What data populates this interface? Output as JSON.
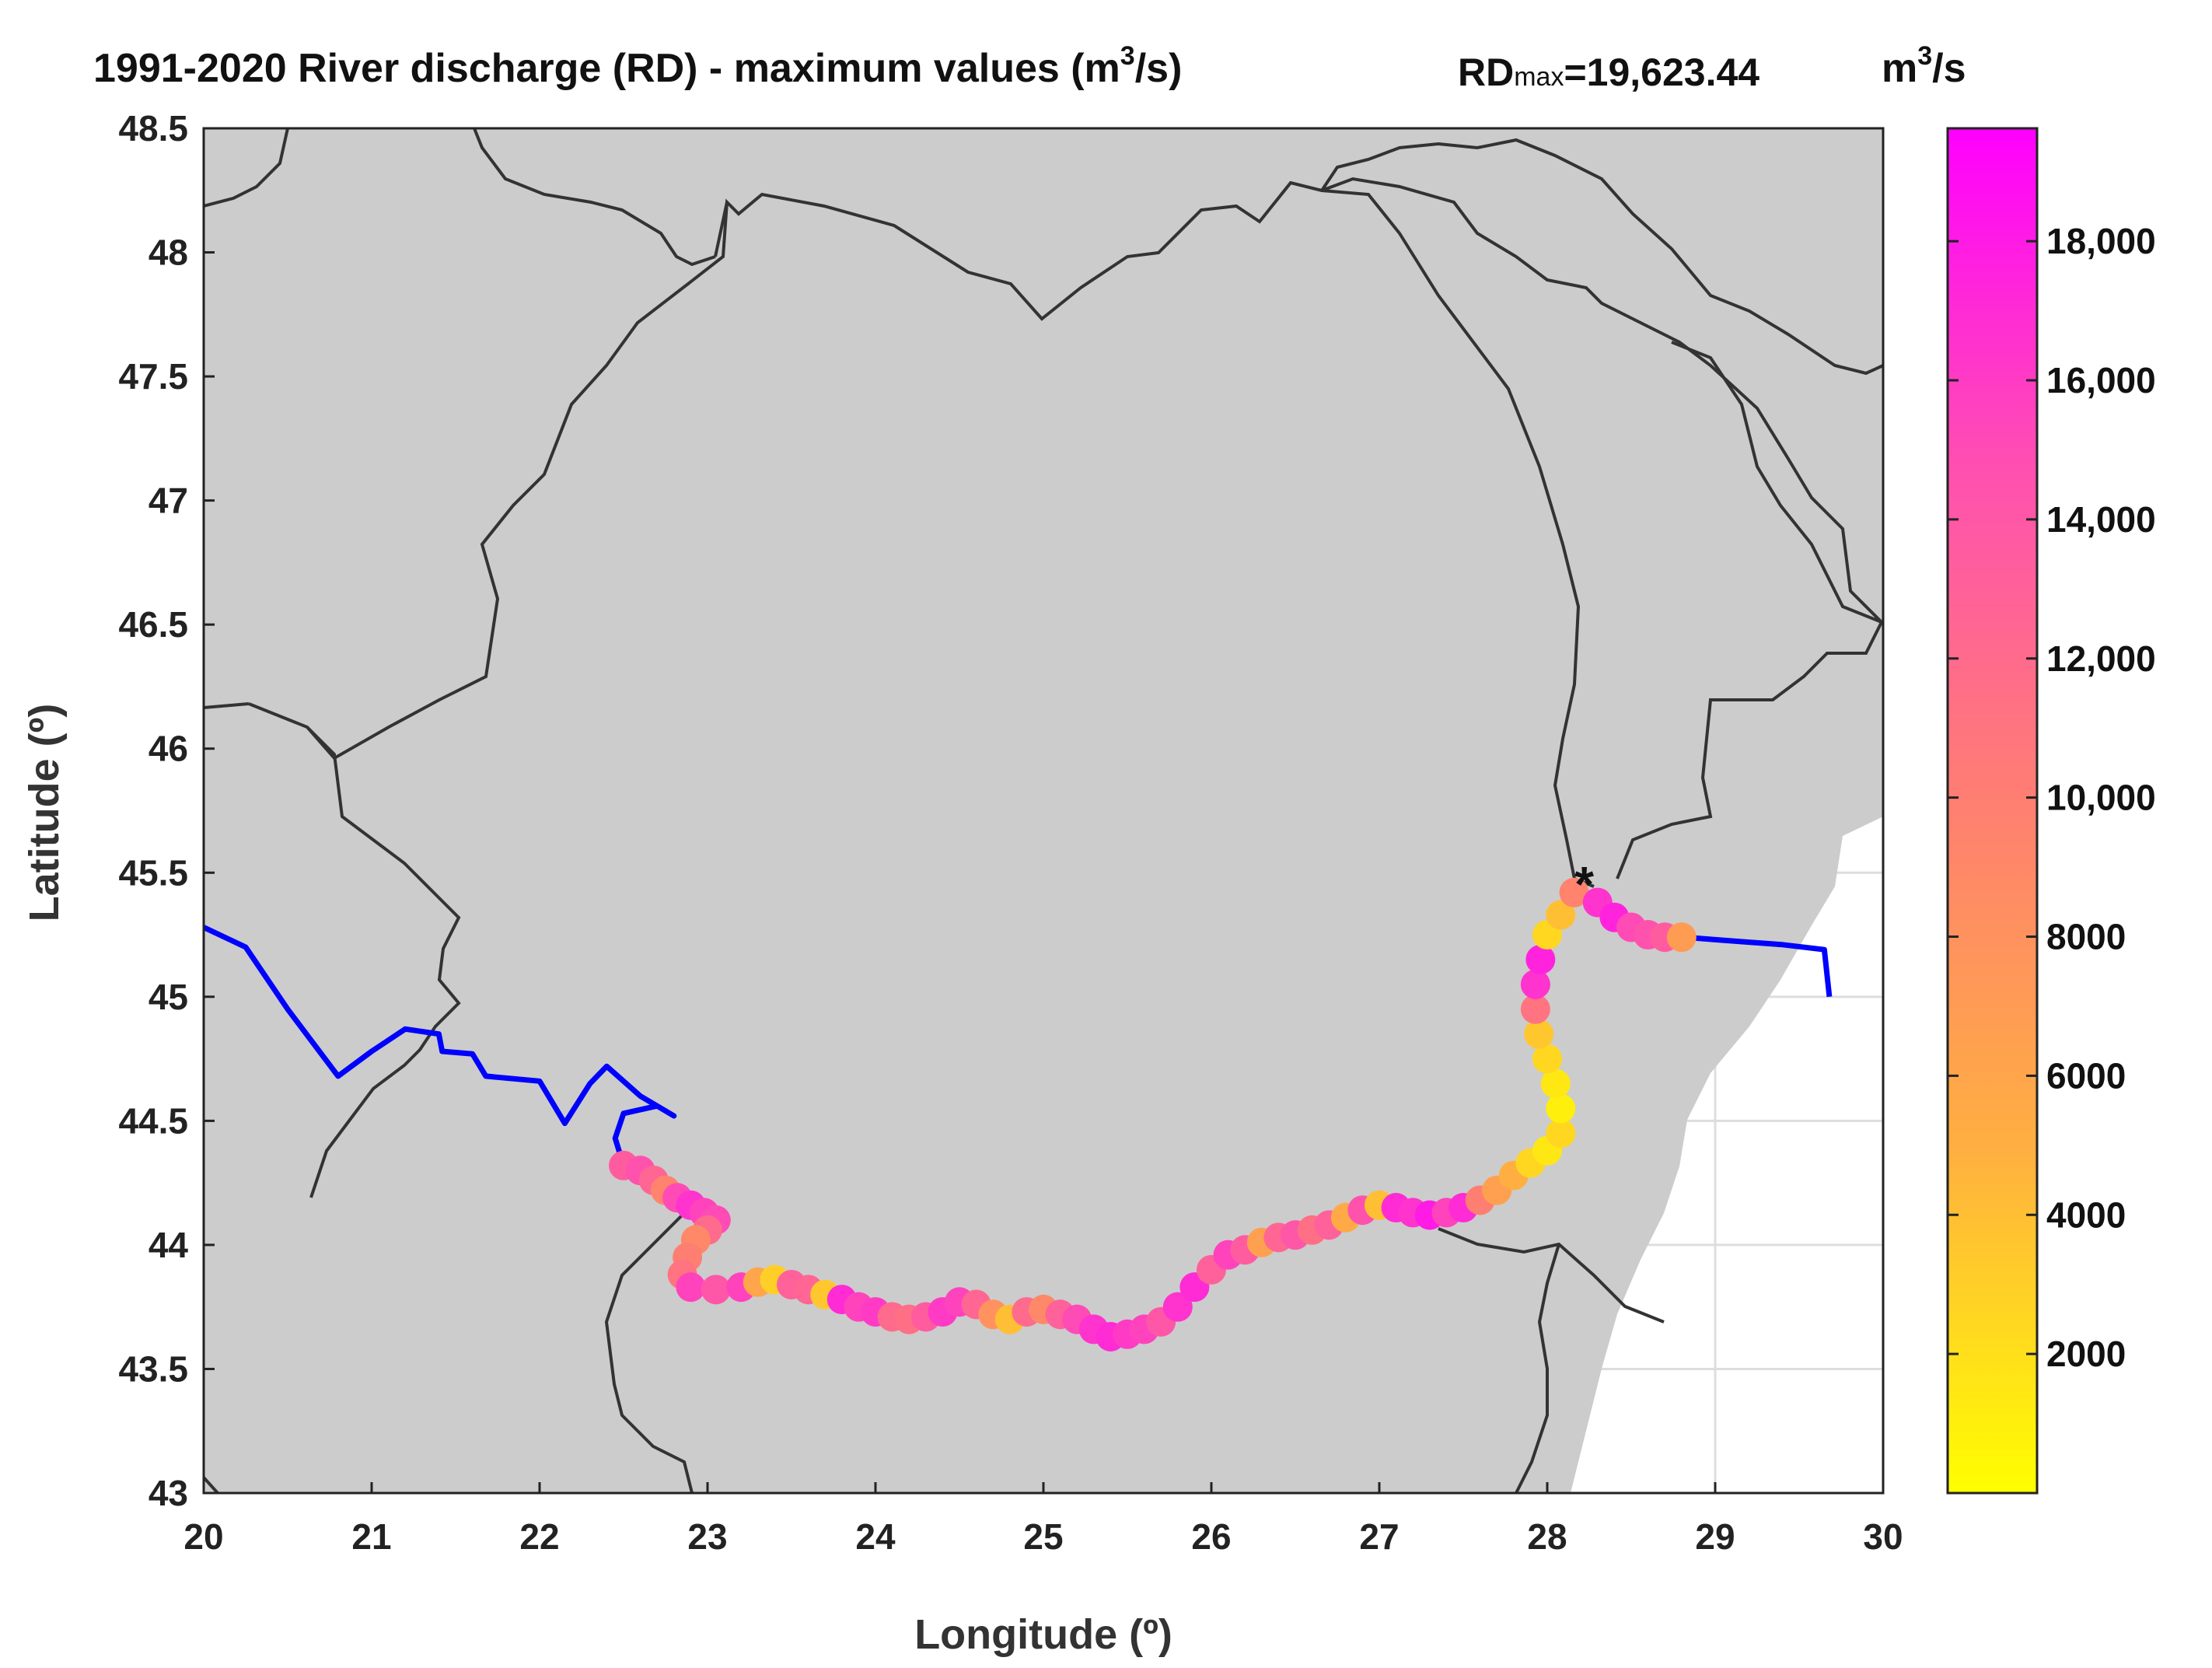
{
  "title": {
    "main": "1991-2020 River discharge (RD) - maximum values (m",
    "main_sup": "3",
    "main_end": "/s)",
    "rd_prefix": "RD",
    "rd_sub": "max",
    "rd_value": "=19,623.44",
    "unit": "m",
    "unit_sup": "3",
    "unit_end": "/s"
  },
  "colors": {
    "land": "#cccccc",
    "sea": "#ffffff",
    "border": "#333333",
    "river_line": "#0000ff",
    "cmap_low": "#ffff00",
    "cmap_high": "#ff00ff",
    "marker": "#111111"
  },
  "chart_data": {
    "type": "scatter",
    "title": "1991-2020 River discharge (RD) - maximum values (m3/s)",
    "xlabel": "Longitude (º)",
    "ylabel": "Latitude (º)",
    "xlim": [
      20,
      30
    ],
    "ylim": [
      43,
      48.5
    ],
    "x_ticks": [
      "20",
      "21",
      "22",
      "23",
      "24",
      "25",
      "26",
      "27",
      "28",
      "29",
      "30"
    ],
    "y_ticks": [
      "43",
      "43.5",
      "44",
      "44.5",
      "45",
      "45.5",
      "46",
      "46.5",
      "47",
      "47.5",
      "48",
      "48.5"
    ],
    "grid": true,
    "colorbar": {
      "label": "m3/s",
      "clim": [
        0,
        19623.44
      ],
      "ticks": [
        "2000",
        "4000",
        "6000",
        "8000",
        "10,000",
        "12,000",
        "14,000",
        "16,000",
        "18,000"
      ]
    },
    "river_line_upstream": [
      [
        20.0,
        45.28
      ],
      [
        20.25,
        45.2
      ],
      [
        20.5,
        44.95
      ],
      [
        20.8,
        44.68
      ],
      [
        21.0,
        44.78
      ],
      [
        21.2,
        44.87
      ],
      [
        21.4,
        44.85
      ],
      [
        21.42,
        44.78
      ],
      [
        21.6,
        44.77
      ],
      [
        21.68,
        44.68
      ],
      [
        22.0,
        44.66
      ],
      [
        22.15,
        44.49
      ],
      [
        22.3,
        44.65
      ],
      [
        22.4,
        44.72
      ],
      [
        22.6,
        44.6
      ],
      [
        22.8,
        44.52
      ],
      [
        22.7,
        44.56
      ],
      [
        22.5,
        44.53
      ],
      [
        22.45,
        44.43
      ],
      [
        22.5,
        44.32
      ]
    ],
    "river_line_downstream": [
      [
        28.82,
        45.24
      ],
      [
        29.0,
        45.23
      ],
      [
        29.2,
        45.22
      ],
      [
        29.4,
        45.21
      ],
      [
        29.65,
        45.19
      ],
      [
        29.68,
        45.0
      ]
    ],
    "observation_marker": {
      "lon": 28.22,
      "lat": 45.46,
      "symbol": "*"
    },
    "discharge_points": [
      [
        22.5,
        44.32,
        13500
      ],
      [
        22.6,
        44.3,
        14500
      ],
      [
        22.68,
        44.26,
        12500
      ],
      [
        22.75,
        44.22,
        9500
      ],
      [
        22.82,
        44.19,
        15000
      ],
      [
        22.9,
        44.16,
        16500
      ],
      [
        22.98,
        44.13,
        15500
      ],
      [
        23.05,
        44.1,
        15000
      ],
      [
        23.0,
        44.06,
        12000
      ],
      [
        22.93,
        44.02,
        9000
      ],
      [
        22.88,
        43.95,
        10000
      ],
      [
        22.85,
        43.88,
        11000
      ],
      [
        22.9,
        43.83,
        15500
      ],
      [
        23.05,
        43.82,
        14000
      ],
      [
        23.2,
        43.83,
        15500
      ],
      [
        23.3,
        43.85,
        6000
      ],
      [
        23.4,
        43.86,
        3000
      ],
      [
        23.5,
        43.84,
        13000
      ],
      [
        23.6,
        43.82,
        12500
      ],
      [
        23.7,
        43.8,
        3500
      ],
      [
        23.8,
        43.78,
        17000
      ],
      [
        23.9,
        43.75,
        15500
      ],
      [
        24.0,
        43.73,
        16000
      ],
      [
        24.1,
        43.71,
        12000
      ],
      [
        24.2,
        43.7,
        11500
      ],
      [
        24.3,
        43.71,
        13500
      ],
      [
        24.4,
        43.73,
        16000
      ],
      [
        24.5,
        43.77,
        15500
      ],
      [
        24.6,
        43.76,
        12500
      ],
      [
        24.7,
        43.72,
        8000
      ],
      [
        24.8,
        43.7,
        4000
      ],
      [
        24.9,
        43.73,
        12000
      ],
      [
        25.0,
        43.74,
        9000
      ],
      [
        25.1,
        43.72,
        13000
      ],
      [
        25.2,
        43.7,
        15000
      ],
      [
        25.3,
        43.66,
        16500
      ],
      [
        25.4,
        43.63,
        17000
      ],
      [
        25.5,
        43.64,
        16000
      ],
      [
        25.6,
        43.66,
        15500
      ],
      [
        25.7,
        43.69,
        14000
      ],
      [
        25.8,
        43.75,
        16500
      ],
      [
        25.9,
        43.83,
        17000
      ],
      [
        26.0,
        43.9,
        13000
      ],
      [
        26.1,
        43.96,
        15500
      ],
      [
        26.2,
        43.98,
        13500
      ],
      [
        26.3,
        44.01,
        6500
      ],
      [
        26.4,
        44.03,
        12500
      ],
      [
        26.5,
        44.04,
        14000
      ],
      [
        26.6,
        44.06,
        11500
      ],
      [
        26.7,
        44.08,
        13000
      ],
      [
        26.8,
        44.11,
        5500
      ],
      [
        26.9,
        44.14,
        14500
      ],
      [
        27.0,
        44.16,
        4000
      ],
      [
        27.1,
        44.15,
        17000
      ],
      [
        27.2,
        44.13,
        16500
      ],
      [
        27.3,
        44.12,
        18000
      ],
      [
        27.4,
        44.13,
        15500
      ],
      [
        27.5,
        44.15,
        17000
      ],
      [
        27.6,
        44.18,
        10000
      ],
      [
        27.7,
        44.22,
        6500
      ],
      [
        27.8,
        44.28,
        5000
      ],
      [
        27.9,
        44.33,
        2500
      ],
      [
        28.0,
        44.38,
        1500
      ],
      [
        28.08,
        44.45,
        2500
      ],
      [
        28.08,
        44.55,
        1000
      ],
      [
        28.05,
        44.65,
        1500
      ],
      [
        28.0,
        44.75,
        2500
      ],
      [
        27.95,
        44.85,
        3500
      ],
      [
        27.93,
        44.95,
        11000
      ],
      [
        27.93,
        45.05,
        16500
      ],
      [
        27.96,
        45.15,
        17500
      ],
      [
        28.0,
        45.25,
        2500
      ],
      [
        28.08,
        45.33,
        4000
      ],
      [
        28.16,
        45.42,
        9500
      ],
      [
        28.3,
        45.38,
        16500
      ],
      [
        28.4,
        45.32,
        17500
      ],
      [
        28.5,
        45.28,
        15000
      ],
      [
        28.6,
        45.25,
        14500
      ],
      [
        28.7,
        45.24,
        13500
      ],
      [
        28.8,
        45.24,
        7000
      ]
    ]
  }
}
